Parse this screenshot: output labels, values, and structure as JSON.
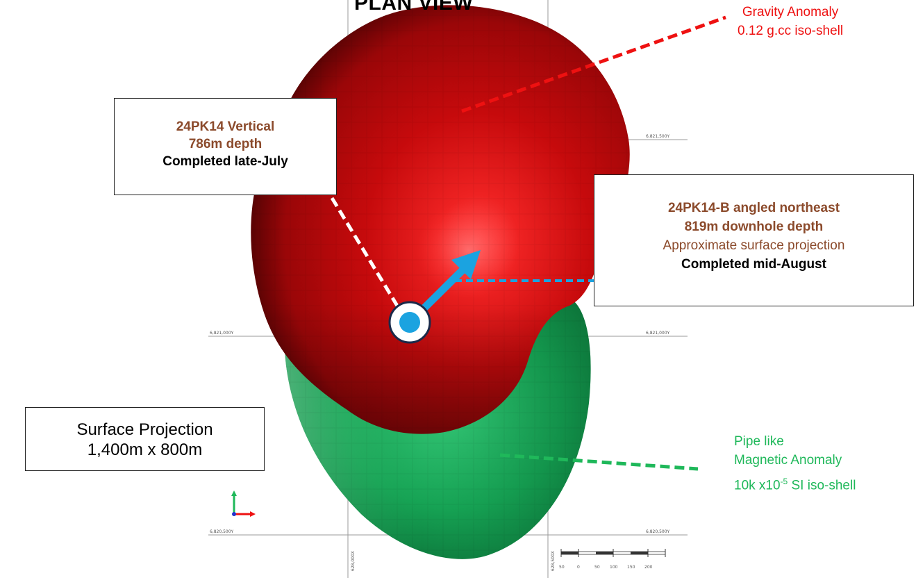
{
  "title": "PLAN VIEW",
  "callouts": {
    "vertical_hole": {
      "line1": "24PK14 Vertical",
      "line2": "786m depth",
      "line3": "Completed late-July"
    },
    "angled_hole": {
      "line1": "24PK14-B angled northeast",
      "line2": "819m downhole depth",
      "line3": "Approximate surface projection",
      "line4": "Completed mid-August"
    },
    "surface_projection": {
      "line1": "Surface Projection",
      "line2": "1,400m x 800m"
    }
  },
  "gravity_label": {
    "line1": "Gravity Anomaly",
    "line2": "0.12 g.cc iso-shell",
    "color": "#ee1111"
  },
  "magnetic_label": {
    "line1": "Pipe like",
    "line2": "Magnetic Anomaly",
    "line3_prefix": "10k x10",
    "line3_exp": "-5",
    "line3_suffix": " SI iso-shell",
    "color": "#1fb85a"
  },
  "grid_labels": {
    "y_top_right": "6,821,500Y",
    "y_mid_left": "6,821,000Y",
    "y_mid_right": "6,821,000Y",
    "y_bot_left": "6,820,500Y",
    "y_bot_right": "6,820,500Y",
    "x_left": "628,000X",
    "x_right": "628,500X"
  },
  "scale_bar": {
    "ticks": [
      "50",
      "0",
      "50",
      "100",
      "150",
      "200"
    ]
  },
  "colors": {
    "gravity_shell": "#c4090b",
    "magnetic_shell": "#16a354",
    "drill_arrow": "#1ba3e0",
    "leader_vertical": "#ffffff"
  }
}
